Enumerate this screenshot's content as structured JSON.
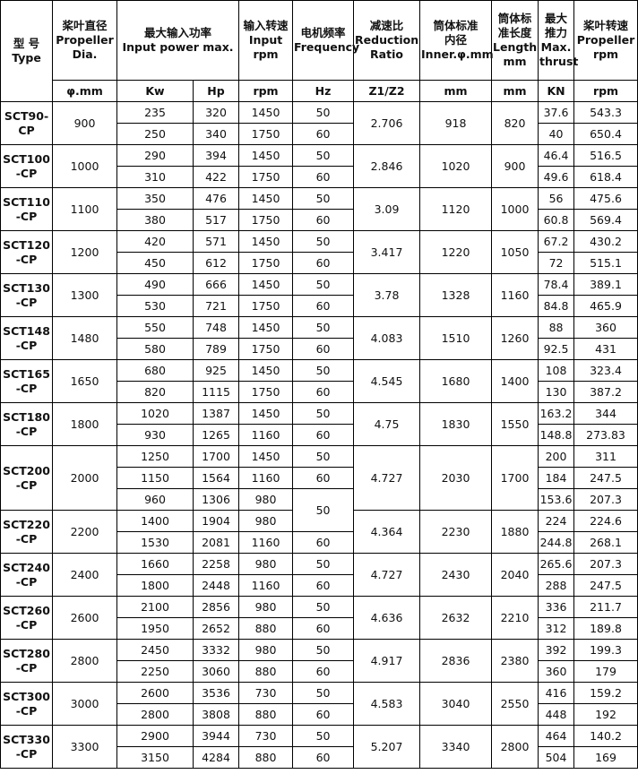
{
  "table": {
    "header": [
      "型 号\nType",
      "桨叶直径\nPropeller\nDia.",
      "最大输入功率\nInput power max.",
      "输入转速\nInput rpm",
      "电机频率\nFrequency",
      "减速比\nReduction\nRatio",
      "筒体标准\n内径\nInner.φ.mm",
      "筒体标准长度\nLength\nmm",
      "最大推力\nMax.\nthrust",
      "桨叶转速\nPropeller\nrpm"
    ],
    "units": [
      "φ.mm",
      "Kw",
      "Hp",
      "rpm",
      "Hz",
      "Z1/Z2",
      "mm",
      "mm",
      "KN",
      "rpm"
    ],
    "groups": [
      {
        "model": "SCT90-CP",
        "dia": 900,
        "ratio": 2.706,
        "inner": 918,
        "length": 820,
        "rows": [
          [
            235,
            320,
            1450,
            50,
            37.6,
            543.3
          ],
          [
            250,
            340,
            1750,
            60,
            40,
            650.4
          ]
        ]
      },
      {
        "model": "SCT100-CP",
        "dia": 1000,
        "ratio": 2.846,
        "inner": 1020,
        "length": 900,
        "rows": [
          [
            290,
            394,
            1450,
            50,
            46.4,
            516.5
          ],
          [
            310,
            422,
            1750,
            60,
            49.6,
            618.4
          ]
        ]
      },
      {
        "model": "SCT110-CP",
        "dia": 1100,
        "ratio": 3.09,
        "inner": 1120,
        "length": 1000,
        "rows": [
          [
            350,
            476,
            1450,
            50,
            56,
            475.6
          ],
          [
            380,
            517,
            1750,
            60,
            60.8,
            569.4
          ]
        ]
      },
      {
        "model": "SCT120-CP",
        "dia": 1200,
        "ratio": 3.417,
        "inner": 1220,
        "length": 1050,
        "rows": [
          [
            420,
            571,
            1450,
            50,
            67.2,
            430.2
          ],
          [
            450,
            612,
            1750,
            60,
            72,
            515.1
          ]
        ]
      },
      {
        "model": "SCT130-CP",
        "dia": 1300,
        "ratio": 3.78,
        "inner": 1328,
        "length": 1160,
        "rows": [
          [
            490,
            666,
            1450,
            50,
            78.4,
            389.1
          ],
          [
            530,
            721,
            1750,
            60,
            84.8,
            465.9
          ]
        ]
      },
      {
        "model": "SCT148-CP",
        "dia": 1480,
        "ratio": 4.083,
        "inner": 1510,
        "length": 1260,
        "rows": [
          [
            550,
            748,
            1450,
            50,
            88,
            360
          ],
          [
            580,
            789,
            1750,
            60,
            92.5,
            431
          ]
        ]
      },
      {
        "model": "SCT165-CP",
        "dia": 1650,
        "ratio": 4.545,
        "inner": 1680,
        "length": 1400,
        "rows": [
          [
            680,
            925,
            1450,
            50,
            108,
            323.4
          ],
          [
            820,
            1115,
            1750,
            60,
            130,
            387.2
          ]
        ]
      },
      {
        "model": "SCT180-CP",
        "dia": 1800,
        "ratio": 4.75,
        "inner": 1830,
        "length": 1550,
        "rows": [
          [
            1020,
            1387,
            1450,
            50,
            163.2,
            344
          ],
          [
            930,
            1265,
            1160,
            60,
            148.8,
            273.83
          ]
        ]
      },
      {
        "model": "SCT200-CP",
        "dia": 2000,
        "ratio": 4.727,
        "inner": 2030,
        "length": 1700,
        "rows": [
          [
            1250,
            1700,
            1450,
            50,
            200,
            311
          ],
          [
            1150,
            1564,
            1160,
            60,
            184,
            247.5
          ],
          [
            960,
            1306,
            980,
            null,
            153.6,
            207.3
          ]
        ]
      },
      {
        "model": "SCT220-CP",
        "dia": 2200,
        "ratio": 4.364,
        "inner": 2230,
        "length": 1880,
        "rows": [
          [
            1400,
            1904,
            980,
            50,
            224,
            224.6
          ],
          [
            1530,
            2081,
            1160,
            60,
            244.8,
            268.1
          ]
        ]
      },
      {
        "model": "SCT240-CP",
        "dia": 2400,
        "ratio": 4.727,
        "inner": 2430,
        "length": 2040,
        "rows": [
          [
            1660,
            2258,
            980,
            50,
            265.6,
            207.3
          ],
          [
            1800,
            2448,
            1160,
            60,
            288,
            247.5
          ]
        ]
      },
      {
        "model": "SCT260-CP",
        "dia": 2600,
        "ratio": 4.636,
        "inner": 2632,
        "length": 2210,
        "rows": [
          [
            2100,
            2856,
            980,
            50,
            336,
            211.7
          ],
          [
            1950,
            2652,
            880,
            60,
            312,
            189.8
          ]
        ]
      },
      {
        "model": "SCT280-CP",
        "dia": 2800,
        "ratio": 4.917,
        "inner": 2836,
        "length": 2380,
        "rows": [
          [
            2450,
            3332,
            980,
            50,
            392,
            199.3
          ],
          [
            2250,
            3060,
            880,
            60,
            360,
            179
          ]
        ]
      },
      {
        "model": "SCT300-CP",
        "dia": 3000,
        "ratio": 4.583,
        "inner": 3040,
        "length": 2550,
        "rows": [
          [
            2600,
            3536,
            730,
            50,
            416,
            159.2
          ],
          [
            2800,
            3808,
            880,
            60,
            448,
            192
          ]
        ]
      },
      {
        "model": "SCT330-CP",
        "dia": 3300,
        "ratio": 5.207,
        "inner": 3340,
        "length": 2800,
        "rows": [
          [
            2900,
            3944,
            730,
            50,
            464,
            140.2
          ],
          [
            3150,
            4284,
            880,
            60,
            504,
            169
          ]
        ]
      }
    ]
  }
}
